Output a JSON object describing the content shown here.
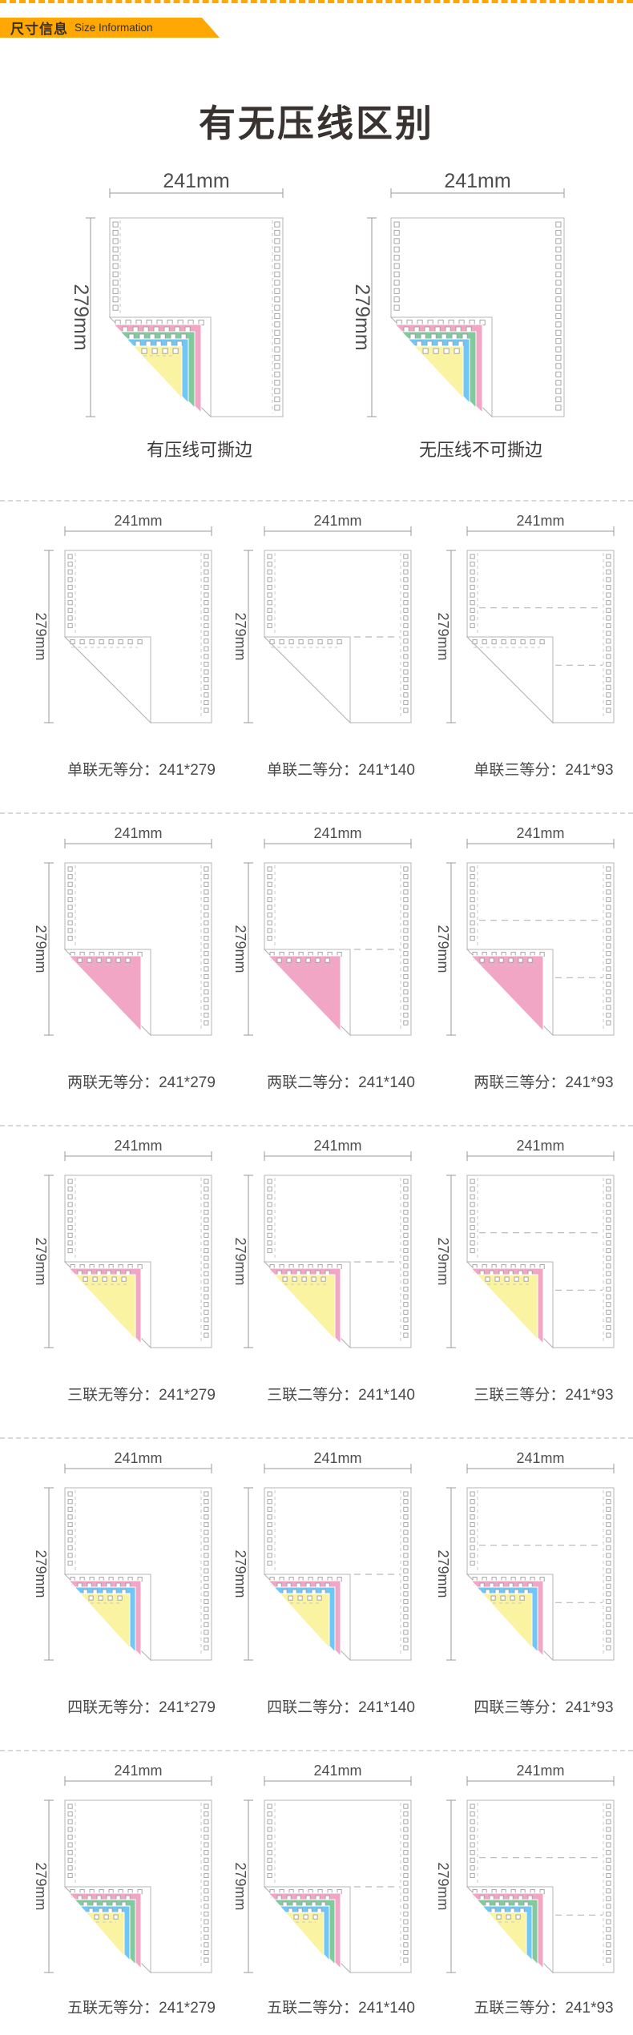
{
  "header": {
    "title_cn": "尺寸信息",
    "title_en": "Size Information",
    "bg_color": "#FFA702"
  },
  "page_title": "有无压线区别",
  "dims": {
    "width_label": "241mm",
    "height_label": "279mm"
  },
  "ply_colors": {
    "pink": "#F2A6C6",
    "green": "#82C99E",
    "blue": "#70C6F4",
    "yellow": "#FAF3A1"
  },
  "comparison": {
    "left": {
      "caption": "有压线可撕边",
      "plies": [
        "pink",
        "green",
        "blue",
        "yellow"
      ],
      "divisions": 0,
      "crease": true
    },
    "right": {
      "caption": "无压线不可撕边",
      "plies": [
        "pink",
        "green",
        "blue",
        "yellow"
      ],
      "divisions": 0,
      "crease": false
    }
  },
  "grid_rows": [
    {
      "cells": [
        {
          "caption": "单联无等分：241*279",
          "plies": [],
          "divisions": 0,
          "crease": true
        },
        {
          "caption": "单联二等分：241*140",
          "plies": [],
          "divisions": 2,
          "crease": true
        },
        {
          "caption": "单联三等分：241*93",
          "plies": [],
          "divisions": 3,
          "crease": true
        }
      ]
    },
    {
      "cells": [
        {
          "caption": "两联无等分：241*279",
          "plies": [
            "pink"
          ],
          "divisions": 0,
          "crease": true
        },
        {
          "caption": "两联二等分：241*140",
          "plies": [
            "pink"
          ],
          "divisions": 2,
          "crease": true
        },
        {
          "caption": "两联三等分：241*93",
          "plies": [
            "pink"
          ],
          "divisions": 3,
          "crease": true
        }
      ]
    },
    {
      "cells": [
        {
          "caption": "三联无等分：241*279",
          "plies": [
            "pink",
            "yellow"
          ],
          "divisions": 0,
          "crease": true
        },
        {
          "caption": "三联二等分：241*140",
          "plies": [
            "pink",
            "yellow"
          ],
          "divisions": 2,
          "crease": true
        },
        {
          "caption": "三联三等分：241*93",
          "plies": [
            "pink",
            "yellow"
          ],
          "divisions": 3,
          "crease": true
        }
      ]
    },
    {
      "cells": [
        {
          "caption": "四联无等分：241*279",
          "plies": [
            "pink",
            "blue",
            "yellow"
          ],
          "divisions": 0,
          "crease": true
        },
        {
          "caption": "四联二等分：241*140",
          "plies": [
            "pink",
            "blue",
            "yellow"
          ],
          "divisions": 2,
          "crease": true
        },
        {
          "caption": "四联三等分：241*93",
          "plies": [
            "pink",
            "blue",
            "yellow"
          ],
          "divisions": 3,
          "crease": true
        }
      ]
    },
    {
      "cells": [
        {
          "caption": "五联无等分：241*279",
          "plies": [
            "pink",
            "green",
            "blue",
            "yellow"
          ],
          "divisions": 0,
          "crease": true
        },
        {
          "caption": "五联二等分：241*140",
          "plies": [
            "pink",
            "green",
            "blue",
            "yellow"
          ],
          "divisions": 2,
          "crease": true
        },
        {
          "caption": "五联三等分：241*93",
          "plies": [
            "pink",
            "green",
            "blue",
            "yellow"
          ],
          "divisions": 3,
          "crease": true
        }
      ]
    }
  ]
}
